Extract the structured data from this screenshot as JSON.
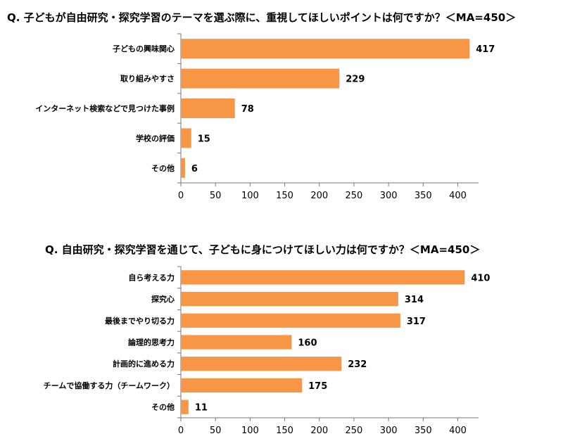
{
  "chart_data": [
    {
      "type": "bar",
      "orientation": "horizontal",
      "title": "Q. 子どもが自由研究・探究学習のテーマを選ぶ際に、重視してほしいポイントは何ですか？＜MA=450＞",
      "categories": [
        "子どもの興味関心",
        "取り組みやすさ",
        "インターネット検索などで見つけた事例",
        "学校の評価",
        "その他"
      ],
      "values": [
        417,
        229,
        78,
        15,
        6
      ],
      "xlim": [
        0,
        430
      ],
      "xticks": [
        0,
        50,
        100,
        150,
        200,
        250,
        300,
        350,
        400
      ],
      "grid": false,
      "bar_color": "#F79646"
    },
    {
      "type": "bar",
      "orientation": "horizontal",
      "title": "Q. 自由研究・探究学習を通じて、子どもに身につけてほしい力は何ですか？＜MA=450＞",
      "categories": [
        "自ら考える力",
        "探究心",
        "最後までやり切る力",
        "論理的思考力",
        "計画的に進める力",
        "チームで協働する力（チームワーク）",
        "その他"
      ],
      "values": [
        410,
        314,
        317,
        160,
        232,
        175,
        11
      ],
      "xlim": [
        0,
        430
      ],
      "xticks": [
        0,
        50,
        100,
        150,
        200,
        250,
        300,
        350,
        400
      ],
      "grid": false,
      "bar_color": "#F79646"
    }
  ]
}
